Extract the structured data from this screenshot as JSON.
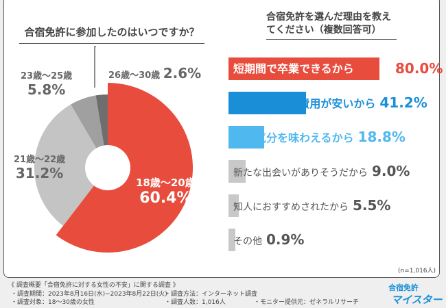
{
  "chart_data": [
    {
      "type": "pie",
      "title": "合宿免許に参加したのはいつですか？",
      "categories": [
        "18歳～20歳",
        "21歳～22歳",
        "23歳～25歳",
        "26歳～30歳"
      ],
      "values": [
        60.4,
        31.2,
        5.8,
        2.6
      ],
      "labels": [
        "60.4%",
        "31.2%",
        "5.8%",
        "2.6%"
      ],
      "colors": [
        "#e84c3d",
        "#c4c4c4",
        "#a0a0a0",
        "#6e6e6e"
      ]
    },
    {
      "type": "bar",
      "orientation": "horizontal",
      "title": "合宿免許を選んだ理由を教えてください（複数回答可）",
      "categories": [
        "短期間で卒業できるから",
        "通学と比べて費用が安いから",
        "旅行気分を味わえるから",
        "新たな出会いがありそうだから",
        "知人におすすめされたから",
        "その他"
      ],
      "values": [
        80.0,
        41.2,
        18.8,
        9.0,
        5.5,
        0.9
      ],
      "labels": [
        "80.0%",
        "41.2%",
        "18.8%",
        "9.0%",
        "5.5%",
        "0.9%"
      ],
      "colors": [
        "#e84c3d",
        "#1a8fd8",
        "#4fb8ee",
        "#c8c8c8",
        "#c8c8c8",
        "#c8c8c8"
      ],
      "note": "(n=1,016人)"
    }
  ],
  "footer": {
    "title": "《 調査概要「合宿免許に対する女性の不安」に関する調査 》",
    "items": [
      "・調査期間：2023年8月16日(水)~2023年8月22日(火)",
      "・調査方法：インターネット調査",
      "・調査対象：18～30歳の女性",
      "・調査人数：1,016人",
      "・モニター提供元：ゼネラルリサーチ"
    ],
    "logo_top": "合宿免許",
    "logo_bottom": "マイスター"
  }
}
